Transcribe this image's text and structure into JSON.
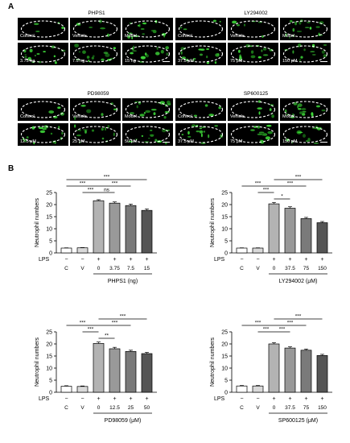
{
  "panel_a_label": "A",
  "panel_b_label": "B",
  "groups": [
    {
      "title": "PHPS1",
      "tiles": [
        "Control",
        "Vehicle",
        "Model",
        "3.75 ng",
        "7.5 ng",
        "15 ng"
      ]
    },
    {
      "title": "LY294002",
      "tiles": [
        "Control",
        "Vehicle",
        "Model",
        "37.5 μM",
        "75 μM",
        "150 μM"
      ]
    },
    {
      "title": "PD98059",
      "tiles": [
        "Control",
        "Vehicle",
        "Model",
        "12.5 μM",
        "25 μM",
        "50 μM"
      ]
    },
    {
      "title": "SP600125",
      "tiles": [
        "Control",
        "Vehicle",
        "Model",
        "37.5 μM",
        "75 μM",
        "150 μM"
      ]
    }
  ],
  "chart_data": [
    {
      "type": "bar",
      "ylabel": "Neutrophil numbers",
      "ylim": [
        0,
        25
      ],
      "yticks": [
        0,
        5,
        10,
        15,
        20,
        25
      ],
      "categories": [
        "C",
        "V",
        "0",
        "3.75",
        "7.5",
        "15"
      ],
      "lps": [
        "−",
        "−",
        "+",
        "+",
        "+",
        "+"
      ],
      "values": [
        2.0,
        2.1,
        21.6,
        20.6,
        19.6,
        17.6
      ],
      "errors": [
        0.1,
        0.1,
        0.4,
        0.5,
        0.6,
        0.6
      ],
      "xlabel": "PHPS1 (ng)",
      "sig": [
        {
          "from": 0,
          "to": 2,
          "text": "***",
          "level": 3
        },
        {
          "from": 0,
          "to": 5,
          "text": "***",
          "level": 4
        },
        {
          "from": 1,
          "to": 2,
          "text": "***",
          "level": 2
        },
        {
          "from": 2,
          "to": 3,
          "text": "ns",
          "level": 2
        },
        {
          "from": 2,
          "to": 4,
          "text": "***",
          "level": 3
        }
      ]
    },
    {
      "type": "bar",
      "ylabel": "Neutrophil numbers",
      "ylim": [
        0,
        25
      ],
      "yticks": [
        0,
        5,
        10,
        15,
        20,
        25
      ],
      "categories": [
        "C",
        "V",
        "0",
        "37.5",
        "75",
        "150"
      ],
      "lps": [
        "−",
        "−",
        "+",
        "+",
        "+",
        "+"
      ],
      "values": [
        2.0,
        2.0,
        20.3,
        18.5,
        14.2,
        12.5
      ],
      "errors": [
        0.1,
        0.1,
        0.6,
        0.6,
        0.5,
        0.5
      ],
      "xlabel": "LY294002 (μM)",
      "sig": [
        {
          "from": 0,
          "to": 2,
          "text": "***",
          "level": 3
        },
        {
          "from": 2,
          "to": 5,
          "text": "***",
          "level": 4
        },
        {
          "from": 1,
          "to": 2,
          "text": "***",
          "level": 2
        },
        {
          "from": 2,
          "to": 3,
          "text": "*",
          "level": 1
        },
        {
          "from": 2,
          "to": 4,
          "text": "***",
          "level": 3
        }
      ]
    },
    {
      "type": "bar",
      "ylabel": "Neutrophil numbers",
      "ylim": [
        0,
        25
      ],
      "yticks": [
        0,
        5,
        10,
        15,
        20,
        25
      ],
      "categories": [
        "C",
        "V",
        "0",
        "12.5",
        "25",
        "50"
      ],
      "lps": [
        "−",
        "−",
        "+",
        "+",
        "+",
        "+"
      ],
      "values": [
        2.5,
        2.4,
        20.2,
        18.0,
        16.9,
        16.0
      ],
      "errors": [
        0.2,
        0.2,
        0.6,
        0.6,
        0.5,
        0.5
      ],
      "xlabel": "PD98059 (μM)",
      "sig": [
        {
          "from": 0,
          "to": 2,
          "text": "***",
          "level": 3
        },
        {
          "from": 2,
          "to": 5,
          "text": "***",
          "level": 4
        },
        {
          "from": 1,
          "to": 2,
          "text": "***",
          "level": 2
        },
        {
          "from": 2,
          "to": 3,
          "text": "**",
          "level": 1
        },
        {
          "from": 2,
          "to": 4,
          "text": "***",
          "level": 3
        }
      ]
    },
    {
      "type": "bar",
      "ylabel": "Neutrophil numbers",
      "ylim": [
        0,
        25
      ],
      "yticks": [
        0,
        5,
        10,
        15,
        20,
        25
      ],
      "categories": [
        "C",
        "V",
        "0",
        "37.5",
        "75",
        "150"
      ],
      "lps": [
        "−",
        "−",
        "+",
        "+",
        "+",
        "+"
      ],
      "values": [
        2.6,
        2.6,
        20.0,
        18.3,
        17.4,
        15.2
      ],
      "errors": [
        0.2,
        0.2,
        0.5,
        0.5,
        0.5,
        0.5
      ],
      "xlabel": "SP600125 (μM)",
      "sig": [
        {
          "from": 0,
          "to": 2,
          "text": "***",
          "level": 3
        },
        {
          "from": 2,
          "to": 5,
          "text": "***",
          "level": 4
        },
        {
          "from": 1,
          "to": 2,
          "text": "***",
          "level": 2
        },
        {
          "from": 2,
          "to": 3,
          "text": "***",
          "level": 2
        },
        {
          "from": 2,
          "to": 4,
          "text": "***",
          "level": 3
        }
      ]
    }
  ]
}
